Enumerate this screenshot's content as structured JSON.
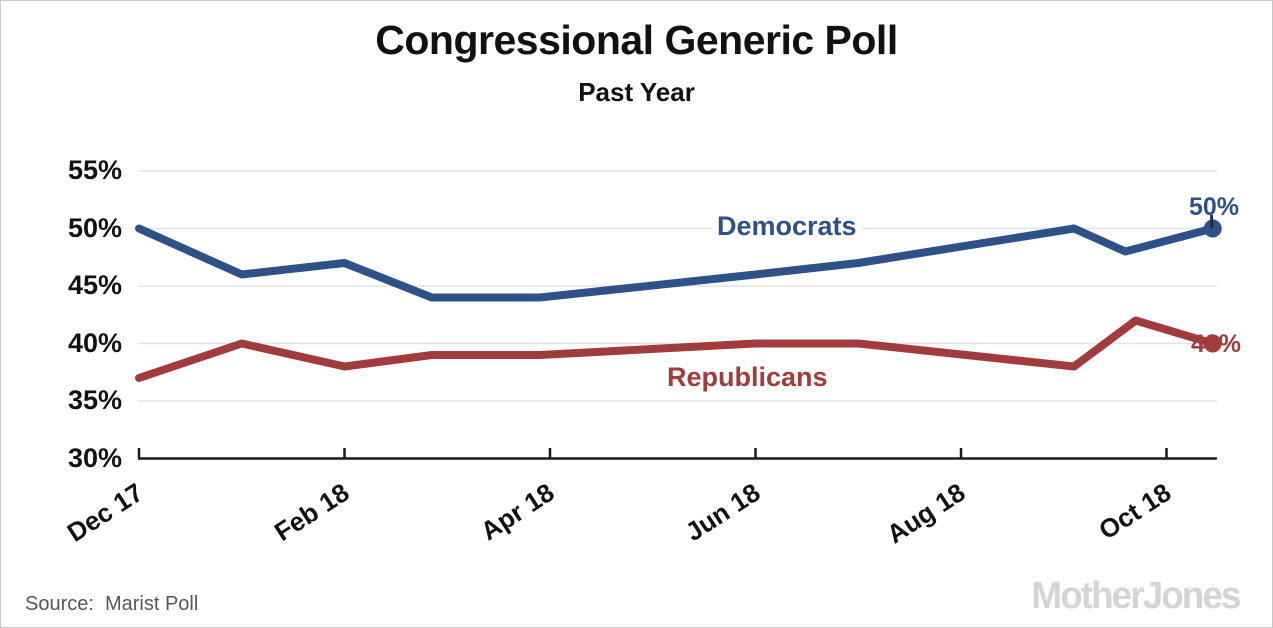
{
  "header": {
    "title": "Congressional Generic Poll",
    "subtitle": "Past Year"
  },
  "source": {
    "label": "Source:",
    "text": "Marist Poll"
  },
  "branding": {
    "logo_text": "MotherJones"
  },
  "colors": {
    "democrats": "#2e5188",
    "republicans": "#a03d3c",
    "grid": "#e3e3e3",
    "axis": "#1a1a1a",
    "cursor_artifact": "#1b2b45",
    "text": "#111111",
    "source_text": "#575757",
    "logo": "#d4d4d4",
    "border": "#c8c8c8",
    "background": "#ffffff"
  },
  "chart_data": {
    "type": "line",
    "title": "Congressional Generic Poll",
    "subtitle": "Past Year",
    "xlabel": "",
    "ylabel": "",
    "ylim": [
      30,
      55
    ],
    "yticks": [
      30,
      35,
      40,
      45,
      50,
      55
    ],
    "ytick_labels": [
      "30%",
      "35%",
      "40%",
      "45%",
      "50%",
      "55%"
    ],
    "xtick_months": [
      0,
      2,
      4,
      6,
      8,
      10
    ],
    "xtick_labels": [
      "Dec 17",
      "Feb 18",
      "Apr 18",
      "Jun 18",
      "Aug 18",
      "Oct 18"
    ],
    "x_unit": "months since Dec 2017, polls at irregular dates",
    "grid": "horizontal",
    "legend": "inline-labels",
    "series": [
      {
        "name": "Democrats",
        "color": "#2e5188",
        "end_label": "50%",
        "x_months": [
          0,
          1,
          2,
          2.85,
          3.9,
          6,
          7,
          9.1,
          9.6,
          10.45
        ],
        "values": [
          50,
          46,
          47,
          44,
          44,
          46,
          47,
          50,
          48,
          50
        ]
      },
      {
        "name": "Republicans",
        "color": "#a03d3c",
        "end_label": "40%",
        "x_months": [
          0,
          1,
          2,
          2.85,
          3.9,
          6,
          7,
          9.1,
          9.7,
          10.45
        ],
        "values": [
          37,
          40,
          38,
          39,
          39,
          40,
          40,
          38,
          42,
          40
        ]
      }
    ]
  }
}
